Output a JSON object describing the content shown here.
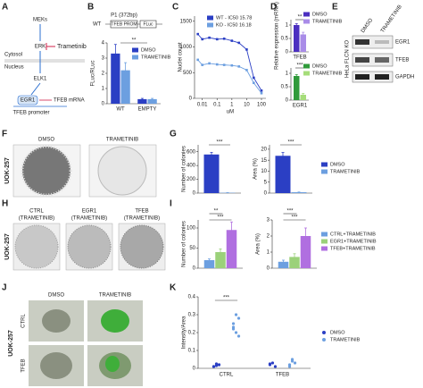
{
  "panels": [
    "A",
    "B",
    "C",
    "D",
    "E",
    "F",
    "G",
    "H",
    "I",
    "J",
    "K"
  ],
  "diagram": {
    "meks": "MEKs",
    "erk": "ERK",
    "drug": "Trametinib",
    "cytosol": "Cytosol",
    "nucleus": "Nucleus",
    "elk1": "ELK1",
    "egr1": "EGR1",
    "mrna": "TFEB mRNA",
    "promoter": "TFEB promoter"
  },
  "construct": {
    "wt": "WT",
    "fragment": "P1 (372bp)",
    "promoter": "TFEB PROM",
    "reporter": "FLuc"
  },
  "blot": {
    "cell_line": "HeLa FLCN KO",
    "lanes": [
      "DMSO",
      "TRAMETINIB"
    ],
    "bands": [
      "EGR1",
      "TFEB",
      "GAPDH"
    ]
  },
  "colony_images": {
    "cell_line": "UOK-257",
    "conditions": [
      "DMSO",
      "TRAMETINIB"
    ]
  },
  "rescue_images": {
    "cell_line": "UOK-257",
    "conditions": [
      "CTRL",
      "EGR1",
      "TFEB"
    ],
    "treatment": "(TRAMETINIB)"
  },
  "spheroid_images": {
    "cell_line": "UOK-257",
    "columns": [
      "DMSO",
      "TRAMETINIB"
    ],
    "rows": [
      "CTRL",
      "TFEB"
    ]
  },
  "chart_data": [
    {
      "type": "bar",
      "ylabel": "FLuc/RLuc",
      "categories": [
        "WT",
        "EMPTY"
      ],
      "series": [
        {
          "name": "DMSO",
          "color": "#2b3fc4",
          "values": [
            3.3,
            0.3
          ],
          "errors": [
            0.6,
            0.05
          ]
        },
        {
          "name": "TRAMETINIB",
          "color": "#6c9fe0",
          "values": [
            2.2,
            0.3
          ],
          "errors": [
            0.5,
            0.05
          ]
        }
      ],
      "ylim": [
        0,
        4
      ],
      "yticks": [
        0,
        1,
        2,
        3,
        4
      ],
      "annotations": [
        "**"
      ]
    },
    {
      "type": "line",
      "ylabel": "Nuclei count",
      "xlabel": "uM",
      "xlog": true,
      "x": [
        0.005,
        0.01,
        0.03,
        0.1,
        0.3,
        1,
        3,
        10,
        30,
        100
      ],
      "xlim": [
        0.003,
        200
      ],
      "xticks": [
        0.01,
        0.1,
        1,
        10,
        100
      ],
      "series": [
        {
          "name": "WT - IC50 15.78",
          "color": "#2b3fc4",
          "values": [
            1250,
            1150,
            1180,
            1150,
            1160,
            1120,
            1080,
            950,
            400,
            150
          ]
        },
        {
          "name": "KO - IC50 16.18",
          "color": "#6c9fe0",
          "values": [
            750,
            650,
            680,
            660,
            650,
            640,
            620,
            550,
            300,
            100
          ]
        }
      ],
      "ylim": [
        0,
        1600
      ],
      "yticks": [
        0,
        500,
        1000,
        1500
      ]
    },
    {
      "type": "bar",
      "ylabel": "Relative expression (mRNA)",
      "categories": [
        "TFEB"
      ],
      "series": [
        {
          "name": "DMSO",
          "color": "#4b2fc0",
          "values": [
            1.0
          ],
          "errors": [
            0.05
          ]
        },
        {
          "name": "TRAMETINIB",
          "color": "#a98ce8",
          "values": [
            0.65
          ],
          "errors": [
            0.08
          ]
        }
      ],
      "ylim": [
        0,
        1.2
      ],
      "yticks": [
        0,
        0.5,
        1
      ],
      "annotations": [
        "**"
      ]
    },
    {
      "type": "bar",
      "categories": [
        "EGR1"
      ],
      "series": [
        {
          "name": "DMSO",
          "color": "#2f9a3a",
          "values": [
            0.9
          ],
          "errors": [
            0.05
          ]
        },
        {
          "name": "TRAMETINIB",
          "color": "#a6dd7a",
          "values": [
            0.2
          ],
          "errors": [
            0.05
          ]
        }
      ],
      "ylim": [
        0,
        1.2
      ],
      "yticks": [
        0,
        0.5,
        1
      ],
      "annotations": [
        "***"
      ]
    },
    {
      "type": "bar",
      "ylabel": "Number of colonies",
      "categories": [
        null
      ],
      "series": [
        {
          "name": "DMSO",
          "color": "#2b3fc4",
          "values": [
            560
          ],
          "errors": [
            30
          ]
        },
        {
          "name": "TRAMETINIB",
          "color": "#6c9fe0",
          "values": [
            5
          ],
          "errors": [
            2
          ]
        }
      ],
      "ylim": [
        0,
        700
      ],
      "yticks": [
        0,
        200,
        400,
        600
      ],
      "annotations": [
        "***"
      ]
    },
    {
      "type": "bar",
      "ylabel": "Area (%)",
      "categories": [
        null
      ],
      "series": [
        {
          "name": "DMSO",
          "color": "#2b3fc4",
          "values": [
            17
          ],
          "errors": [
            1.5
          ]
        },
        {
          "name": "TRAMETINIB",
          "color": "#6c9fe0",
          "values": [
            0.4
          ],
          "errors": [
            0.1
          ]
        }
      ],
      "ylim": [
        0,
        22
      ],
      "yticks": [
        0,
        5,
        10,
        15,
        20
      ],
      "annotations": [
        "***"
      ]
    },
    {
      "type": "bar",
      "ylabel": "Number of colonies",
      "categories": [
        null
      ],
      "series": [
        {
          "name": "CTRL+TRAMETINIB",
          "color": "#6c9fe0",
          "values": [
            20
          ],
          "errors": [
            3
          ]
        },
        {
          "name": "EGR1+TRAMETINIB",
          "color": "#9bd17a",
          "values": [
            40
          ],
          "errors": [
            8
          ]
        },
        {
          "name": "TFEB+TRAMETINIB",
          "color": "#b06fe0",
          "values": [
            95
          ],
          "errors": [
            20
          ]
        }
      ],
      "ylim": [
        0,
        120
      ],
      "yticks": [
        0,
        50,
        100
      ],
      "annotations": [
        "***",
        "**"
      ]
    },
    {
      "type": "bar",
      "ylabel": "Area (%)",
      "categories": [
        null
      ],
      "series": [
        {
          "name": "CTRL+TRAMETINIB",
          "color": "#6c9fe0",
          "values": [
            0.4
          ],
          "errors": [
            0.1
          ]
        },
        {
          "name": "EGR1+TRAMETINIB",
          "color": "#9bd17a",
          "values": [
            0.7
          ],
          "errors": [
            0.2
          ]
        },
        {
          "name": "TFEB+TRAMETINIB",
          "color": "#b06fe0",
          "values": [
            2.0
          ],
          "errors": [
            0.5
          ]
        }
      ],
      "ylim": [
        0,
        3
      ],
      "yticks": [
        0,
        1,
        2,
        3
      ],
      "annotations": [
        "***",
        "***"
      ]
    },
    {
      "type": "strip",
      "ylabel": "Intensity/Area",
      "categories": [
        "CTRL",
        "TFEB"
      ],
      "series": [
        {
          "name": "DMSO",
          "color": "#2b3fc4",
          "values": [
            [
              0.01,
              0.015,
              0.02,
              0.01,
              0.025,
              0.02
            ],
            [
              0.02,
              0.03,
              0.01,
              0.025
            ]
          ]
        },
        {
          "name": "TRAMETINIB",
          "color": "#6c9fe0",
          "values": [
            [
              0.22,
              0.3,
              0.18,
              0.25,
              0.2,
              0.28,
              0.23
            ],
            [
              0.02,
              0.04,
              0.03,
              0.01,
              0.05
            ]
          ]
        }
      ],
      "ylim": [
        0,
        0.4
      ],
      "yticks": [
        0,
        0.1,
        0.2,
        0.3,
        0.4
      ],
      "annotations": [
        "***"
      ]
    }
  ]
}
